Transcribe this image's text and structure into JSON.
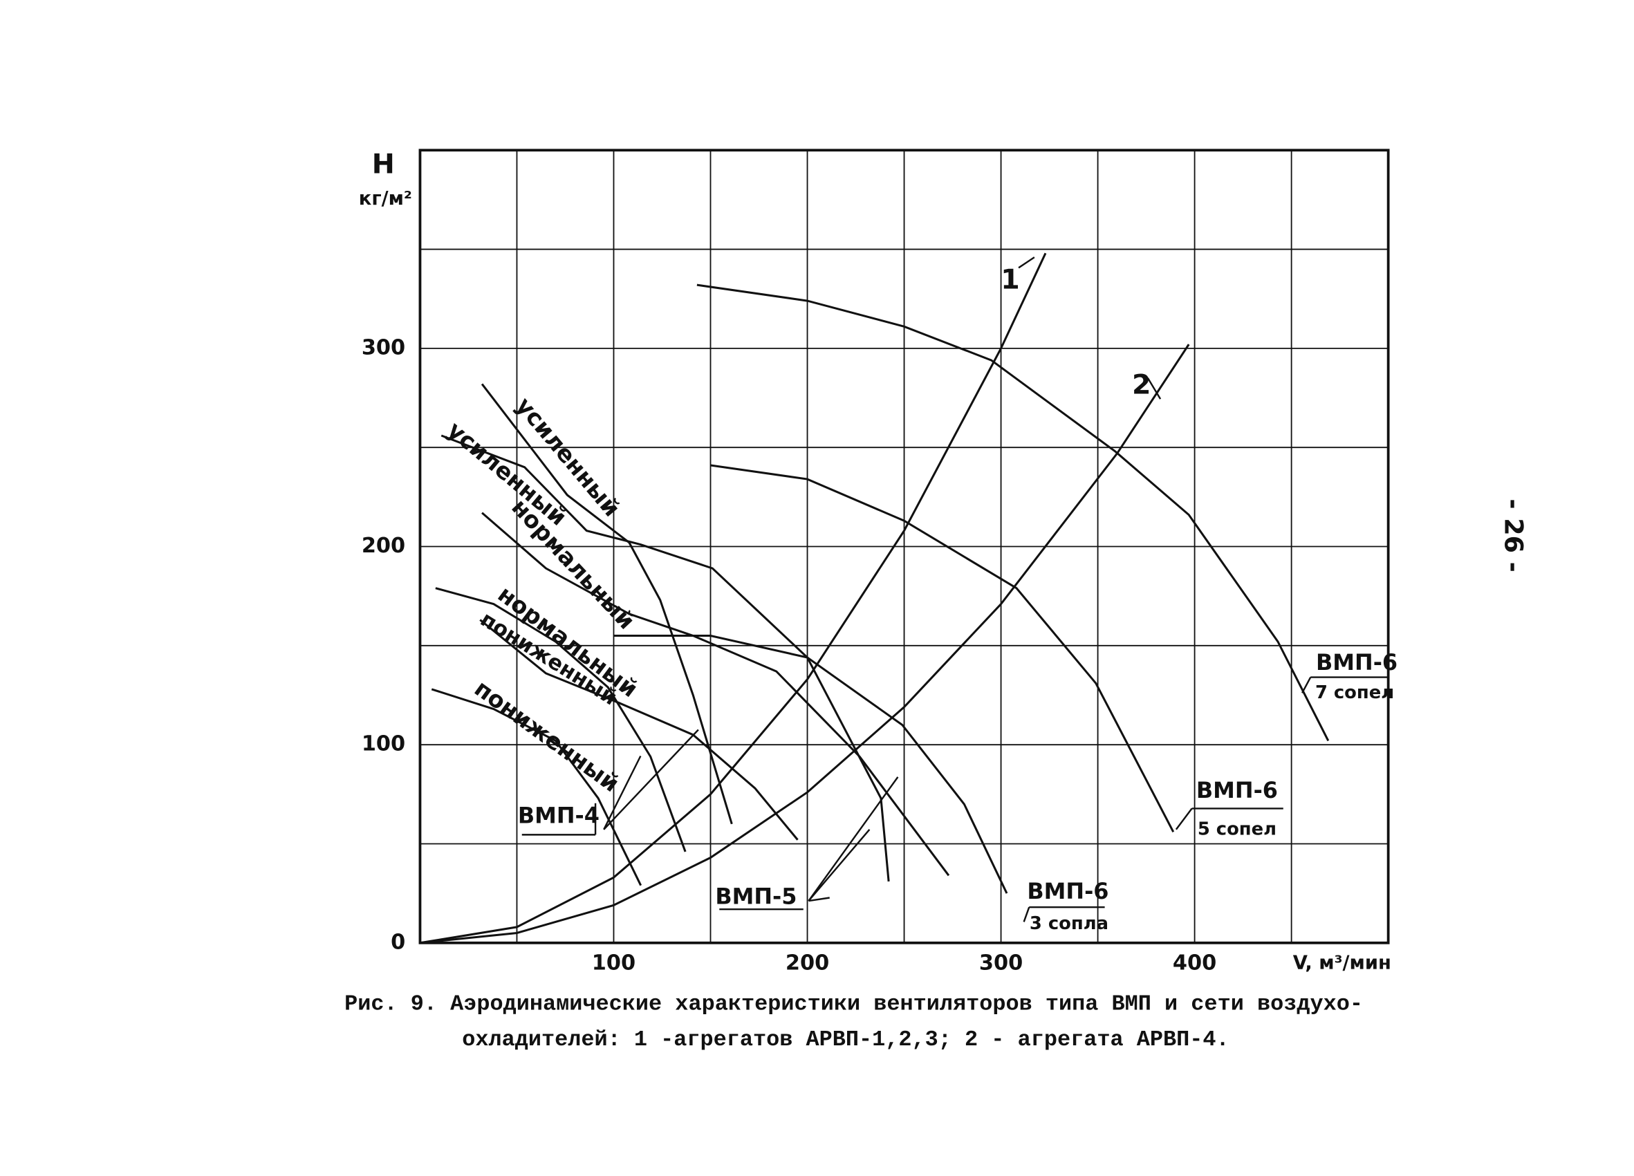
{
  "chart_data": {
    "type": "line",
    "y_label": "H",
    "y_unit": "кг/м²",
    "x_label": "V, м³/мин",
    "xlim": [
      0,
      500
    ],
    "ylim": [
      0,
      400
    ],
    "xticks": [
      100,
      200,
      300,
      400
    ],
    "yticks": [
      0,
      100,
      200,
      300
    ],
    "xgrid": [
      50,
      100,
      150,
      200,
      250,
      300,
      350,
      400,
      450
    ],
    "ygrid": [
      50,
      100,
      150,
      200,
      250,
      300,
      350
    ],
    "grid": true,
    "series": [
      {
        "name": "1",
        "color": "#111",
        "x": [
          0,
          50,
          100,
          150,
          200,
          250,
          300,
          323
        ],
        "values": [
          0,
          8,
          33,
          75,
          133,
          208,
          300,
          348
        ]
      },
      {
        "name": "2",
        "color": "#111",
        "x": [
          0,
          50,
          100,
          150,
          200,
          250,
          300,
          360,
          397
        ],
        "values": [
          0,
          5,
          19,
          43,
          76,
          119,
          171,
          247,
          302
        ]
      },
      {
        "name": "7 сопел",
        "color": "#111",
        "x": [
          143,
          200,
          250,
          295,
          359,
          397,
          443,
          469
        ],
        "values": [
          332,
          324,
          311,
          294,
          248,
          216,
          152,
          102
        ]
      },
      {
        "name": "5 сопел",
        "color": "#111",
        "x": [
          150,
          200,
          250,
          308,
          349,
          389
        ],
        "values": [
          241,
          234,
          213,
          179,
          131,
          56
        ]
      },
      {
        "name": "3 сопла",
        "color": "#111",
        "x": [
          100,
          150,
          200,
          249,
          281,
          303
        ],
        "values": [
          155,
          155,
          144,
          110,
          70,
          25
        ]
      },
      {
        "name": "усиленный",
        "color": "#111",
        "x": [
          32,
          76,
          108,
          124,
          141,
          161
        ],
        "values": [
          282,
          226,
          202,
          173,
          125,
          60
        ]
      },
      {
        "name": "усиленный",
        "color": "#111",
        "x": [
          11,
          54,
          86,
          114,
          151,
          200,
          238,
          242
        ],
        "values": [
          256,
          240,
          208,
          201,
          189,
          144,
          73,
          31
        ]
      },
      {
        "name": "нормальный",
        "color": "#111",
        "x": [
          32,
          65,
          108,
          141,
          184,
          227,
          273
        ],
        "values": [
          217,
          189,
          166,
          155,
          137,
          94,
          34
        ]
      },
      {
        "name": "нормальный",
        "color": "#111",
        "x": [
          8,
          38,
          70,
          97,
          119,
          137
        ],
        "values": [
          179,
          171,
          152,
          129,
          94,
          46
        ]
      },
      {
        "name": "пониженный",
        "color": "#111",
        "x": [
          31,
          65,
          103,
          141,
          173,
          195
        ],
        "values": [
          163,
          136,
          121,
          105,
          78,
          52
        ]
      },
      {
        "name": "пониженный",
        "color": "#111",
        "x": [
          6,
          38,
          70,
          92,
          114
        ],
        "values": [
          128,
          118,
          102,
          73,
          29
        ]
      }
    ],
    "annotations": [
      "ВМП-6",
      "ВМП-6",
      "ВМП-6",
      "ВМП-4",
      "ВМП-5"
    ],
    "caption": [
      "Рис. 9. Аэродинамические характеристики вентиляторов типа ВМП и сети воздухо-",
      "охладителей: 1 -агрегатов АРВП-1,2,3; 2 - агрегата АРВП-4."
    ]
  },
  "page_number": "- 26 -"
}
